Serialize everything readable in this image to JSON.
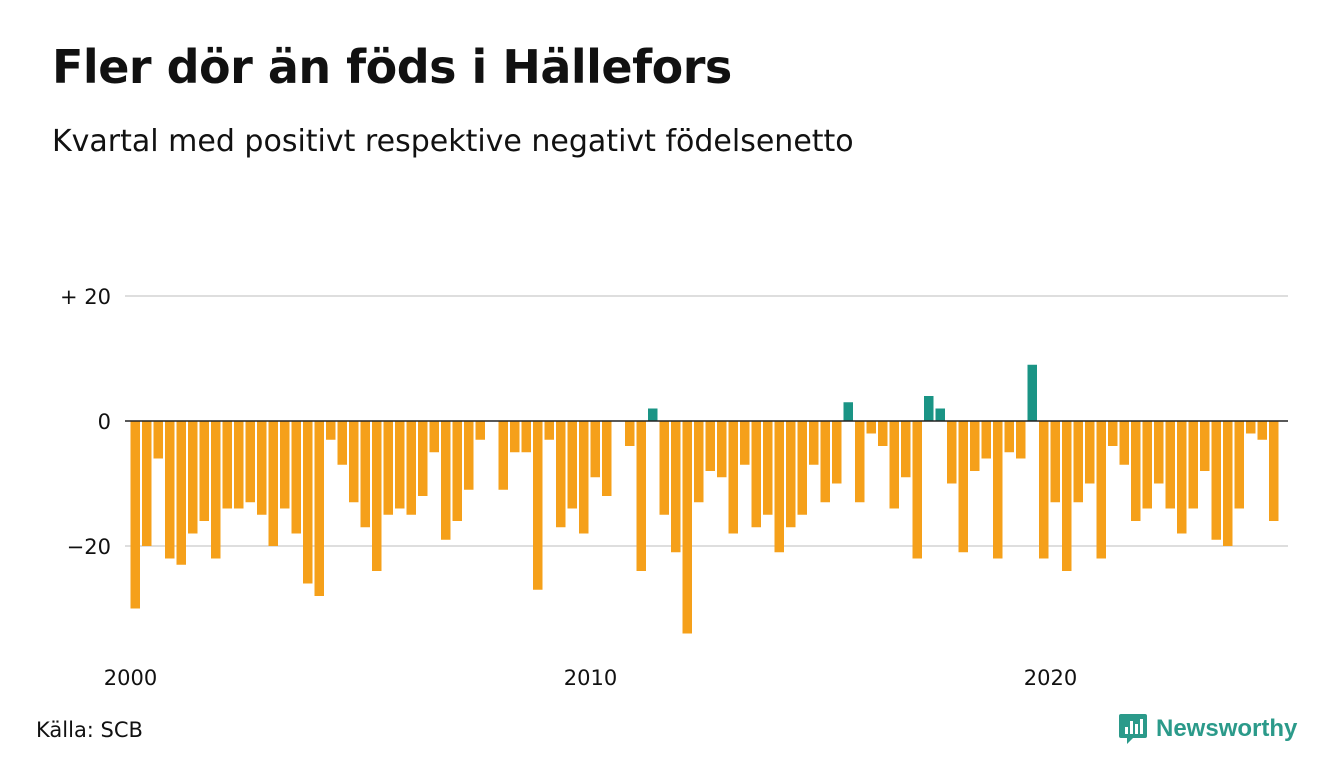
{
  "title": "Fler dör än föds i Hällefors",
  "subtitle": "Kvartal med positivt respektive negativt födelsenetto",
  "source": "Källa: SCB",
  "brand": {
    "name": "Newsworthy"
  },
  "colors": {
    "negative": "#f5a01a",
    "positive": "#1a9485",
    "grid": "#dedede",
    "zero_line": "#222222",
    "brand": "#2b9a8a"
  },
  "chart_data": {
    "type": "bar",
    "ylim": [
      -37,
      25
    ],
    "y_ticks": [
      {
        "value": 20,
        "label": "+ 20"
      },
      {
        "value": 0,
        "label": "0"
      },
      {
        "value": -20,
        "label": "−20"
      }
    ],
    "x_ticks": [
      {
        "index": 0,
        "label": "2000"
      },
      {
        "index": 40,
        "label": "2010"
      },
      {
        "index": 80,
        "label": "2020"
      }
    ],
    "start": "2000 Q1",
    "frequency": "quarter",
    "values": [
      -30,
      -20,
      -6,
      -22,
      -23,
      -18,
      -16,
      -22,
      -14,
      -14,
      -13,
      -15,
      -20,
      -14,
      -18,
      -26,
      -28,
      -3,
      -7,
      -13,
      -17,
      -24,
      -15,
      -14,
      -15,
      -12,
      -5,
      -19,
      -16,
      -11,
      -3,
      0,
      -11,
      -5,
      -5,
      -27,
      -3,
      -17,
      -14,
      -18,
      -9,
      -12,
      0,
      -4,
      -24,
      2,
      -15,
      -21,
      -34,
      -13,
      -8,
      -9,
      -18,
      -7,
      -17,
      -15,
      -21,
      -17,
      -15,
      -7,
      -13,
      -10,
      3,
      -13,
      -2,
      -4,
      -14,
      -9,
      -22,
      4,
      2,
      -10,
      -21,
      -8,
      -6,
      -22,
      -5,
      -6,
      9,
      -22,
      -13,
      -24,
      -13,
      -10,
      -22,
      -4,
      -7,
      -16,
      -14,
      -10,
      -14,
      -18,
      -14,
      -8,
      -19,
      -20,
      -14,
      -2,
      -3,
      -16
    ]
  }
}
